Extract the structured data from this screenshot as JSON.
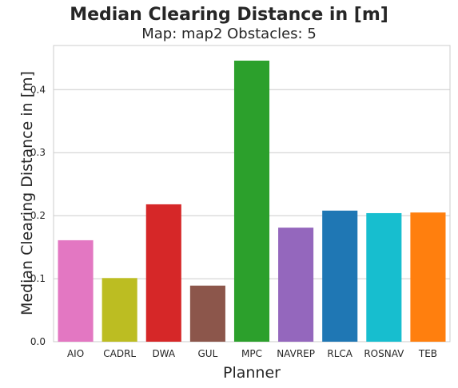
{
  "chart_data": {
    "type": "bar",
    "title": "Median Clearing Distance in [m]",
    "subtitle": "Map: map2 Obstacles: 5",
    "xlabel": "Planner",
    "ylabel": "Median Clearing Distance in [m]",
    "categories": [
      "AIO",
      "CADRL",
      "DWA",
      "GUL",
      "MPC",
      "NAVREP",
      "RLCA",
      "ROSNAV",
      "TEB"
    ],
    "values": [
      0.161,
      0.101,
      0.218,
      0.089,
      0.446,
      0.181,
      0.208,
      0.204,
      0.205
    ],
    "colors": [
      "#e377c2",
      "#bcbd22",
      "#d62728",
      "#8c564b",
      "#2ca02c",
      "#9467bd",
      "#1f77b4",
      "#17becf",
      "#ff7f0e"
    ],
    "ylim": [
      0,
      0.47
    ],
    "yticks": [
      "0.0",
      "0.1",
      "0.2",
      "0.3",
      "0.4"
    ],
    "grid": true
  }
}
